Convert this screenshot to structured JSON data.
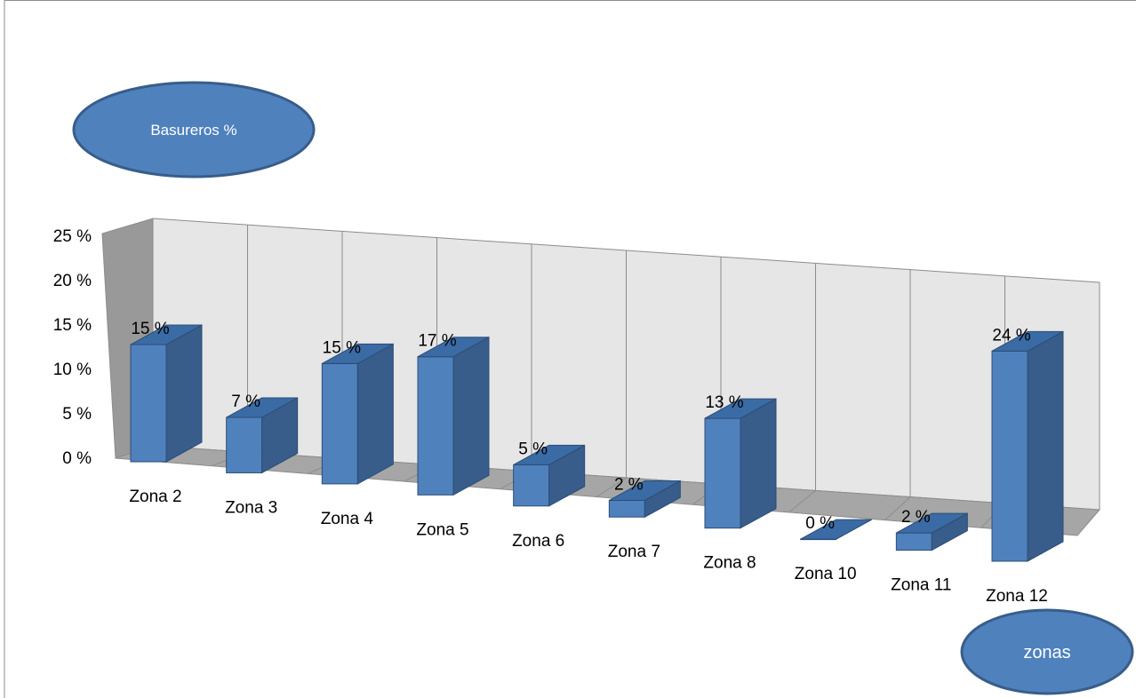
{
  "chart_data": {
    "type": "bar",
    "categories": [
      "Zona 2",
      "Zona 3",
      "Zona 4",
      "Zona 5",
      "Zona 6",
      "Zona 7",
      "Zona 8",
      "Zona 10",
      "Zona 11",
      "Zona 12"
    ],
    "values": [
      15,
      7,
      15,
      17,
      5,
      2,
      13,
      0,
      2,
      24
    ],
    "data_labels": [
      "15 %",
      "7 %",
      "15 %",
      "17 %",
      "5 %",
      "2 %",
      "13 %",
      "0 %",
      "2 %",
      "24 %"
    ],
    "yticks": [
      "0 %",
      "5 %",
      "10 %",
      "15 %",
      "20 %",
      "25 %"
    ],
    "ylim": [
      0,
      25
    ],
    "style": "3d-perspective",
    "grid": true,
    "bar_color": "#4f81bd",
    "bar_side_color": "#385d8a",
    "bar_top_color": "#3b6ba5",
    "wall_color": "#e6e6e6",
    "floor_color": "#a6a6a6",
    "ylabel": "Basureros %",
    "xlabel": "zonas"
  }
}
